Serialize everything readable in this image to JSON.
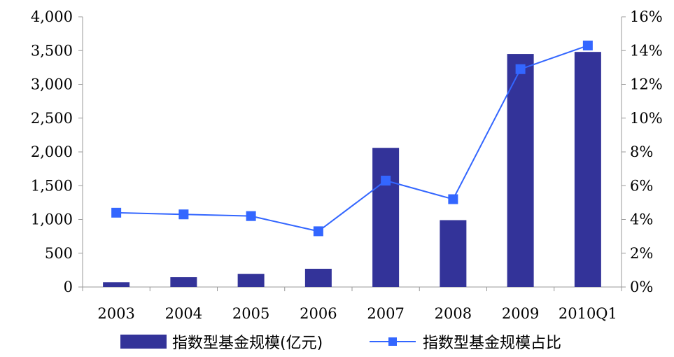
{
  "chart_data": {
    "type": "bar+line",
    "categories": [
      "2003",
      "2004",
      "2005",
      "2006",
      "2007",
      "2008",
      "2009",
      "2010Q1"
    ],
    "series": [
      {
        "name": "指数型基金规模(亿元)",
        "kind": "bar",
        "axis": "left",
        "color": "#333399",
        "values": [
          70,
          145,
          195,
          270,
          2060,
          990,
          3450,
          3480
        ]
      },
      {
        "name": "指数型基金规模占比",
        "kind": "line",
        "axis": "right",
        "color": "#3366ff",
        "marker": "square",
        "values": [
          4.4,
          4.3,
          4.2,
          3.3,
          6.3,
          5.2,
          12.9,
          14.3
        ]
      }
    ],
    "y_left": {
      "ylim": [
        0,
        4000
      ],
      "ticks": [
        0,
        500,
        1000,
        1500,
        2000,
        2500,
        3000,
        3500,
        4000
      ],
      "tick_labels": [
        "0",
        "500",
        "1,000",
        "1,500",
        "2,000",
        "2,500",
        "3,000",
        "3,500",
        "4,000"
      ]
    },
    "y_right": {
      "ylim": [
        0,
        16
      ],
      "ticks": [
        0,
        2,
        4,
        6,
        8,
        10,
        12,
        14,
        16
      ],
      "tick_labels": [
        "0%",
        "2%",
        "4%",
        "6%",
        "8%",
        "10%",
        "12%",
        "14%",
        "16%"
      ]
    },
    "title": "",
    "xlabel": "",
    "grid": false,
    "legend": "bottom"
  }
}
